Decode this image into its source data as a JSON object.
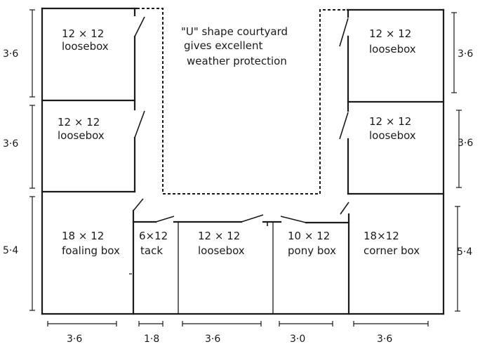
{
  "rooms": [
    {
      "id": "top-left",
      "size": "12 × 12",
      "type": "loosebox"
    },
    {
      "id": "mid-left",
      "size": "12 × 12",
      "type": "loosebox"
    },
    {
      "id": "bottom-left",
      "size": "18 × 12",
      "type": "foaling box"
    },
    {
      "id": "tack",
      "size": "6×12",
      "type": "tack"
    },
    {
      "id": "bottom-center",
      "size": "12 × 12",
      "type": "loosebox"
    },
    {
      "id": "pony",
      "size": "10 × 12",
      "type": "pony box"
    },
    {
      "id": "corner",
      "size": "18×12",
      "type": "corner box"
    },
    {
      "id": "top-right",
      "size": "12 × 12",
      "type": "loosebox"
    },
    {
      "id": "mid-right",
      "size": "12 × 12",
      "type": "loosebox"
    }
  ],
  "courtyard": {
    "line1": "\"U\" shape courtyard",
    "line2": "gives excellent",
    "line3": "weather   protection"
  },
  "dimensions": {
    "left": [
      "3·6",
      "3·6",
      "5·4"
    ],
    "right": [
      "3·6",
      "3·6",
      "5·4"
    ],
    "bottom": [
      "3·6",
      "1·8",
      "3·6",
      "3·0",
      "3·6"
    ]
  }
}
